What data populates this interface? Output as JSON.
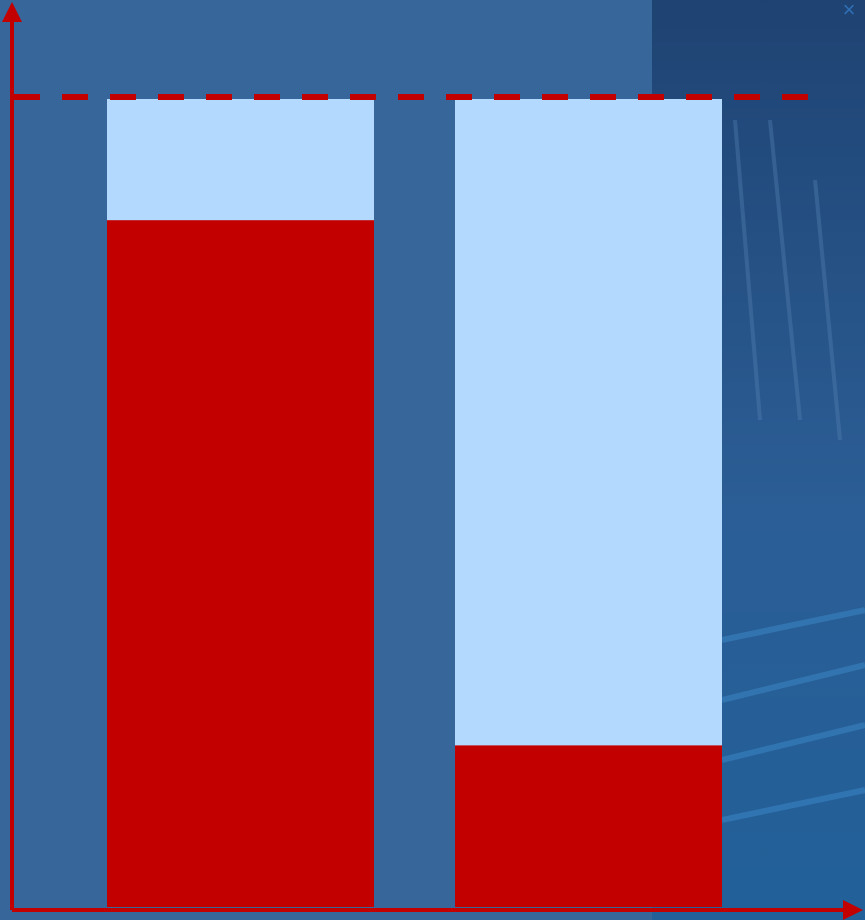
{
  "colors": {
    "panel": "#36669A",
    "backdrop_photo": "#1F4E82",
    "bar_track": "#B3D9FF",
    "bar_fill": "#C30000",
    "axis": "#C30000",
    "reference_line": "#C30000",
    "close_icon": "#2F6FB6"
  },
  "icons": {
    "close": "close-icon"
  },
  "chart_data": {
    "type": "bar",
    "categories": [
      "",
      ""
    ],
    "series": [
      {
        "values": [
          0.85,
          0.2
        ]
      }
    ],
    "capacity": 1,
    "ylim": [
      0,
      1
    ],
    "reference_line": {
      "value": 1,
      "style": "dashed"
    },
    "grid": false,
    "title": "",
    "xlabel": "",
    "ylabel": ""
  }
}
